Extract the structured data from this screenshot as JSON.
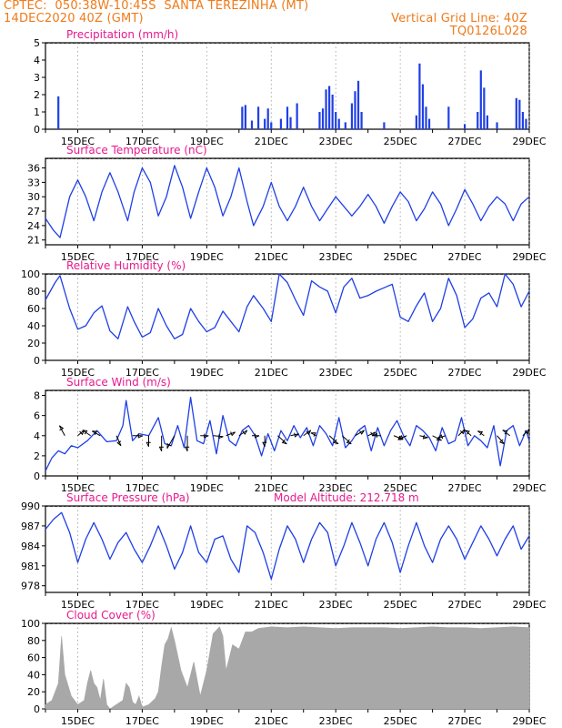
{
  "header": {
    "line1": "CPTEC:  050:38W-10:45S  SANTA TEREZINHA (MT)",
    "line2": "14DEC2020 40Z (GMT)",
    "grid_note": "Vertical Grid Line: 40Z",
    "run_code": "TQ0126L028"
  },
  "colors": {
    "header": "#ef7a1a",
    "title": "#e8188f",
    "series": "#1f3fe6",
    "cloud": "#a8a8a8",
    "grid": "#9a9a9a"
  },
  "x_axis": {
    "day_start": 14,
    "day_end": 29,
    "tick_days": [
      15,
      17,
      19,
      21,
      23,
      25,
      27,
      29
    ],
    "tick_labels": [
      "15DEC",
      "17DEC",
      "19DEC",
      "21DEC",
      "23DEC",
      "25DEC",
      "27DEC",
      "29DEC"
    ]
  },
  "chart_data": [
    {
      "type": "bar",
      "title": "Precipitation (mm/h)",
      "ylim": [
        0,
        5
      ],
      "yticks": [
        0,
        1,
        2,
        3,
        4,
        5
      ],
      "x_unit": "day of December 2020",
      "x": [
        14.4,
        20.1,
        20.2,
        20.4,
        20.6,
        20.8,
        20.9,
        21.0,
        21.3,
        21.5,
        21.6,
        21.8,
        22.5,
        22.6,
        22.7,
        22.8,
        22.9,
        23.0,
        23.1,
        23.3,
        23.5,
        23.6,
        23.7,
        23.8,
        24.5,
        25.5,
        25.6,
        25.7,
        25.8,
        25.9,
        26.5,
        27.0,
        27.4,
        27.5,
        27.6,
        27.7,
        28.0,
        28.6,
        28.7,
        28.8,
        28.9
      ],
      "values": [
        1.9,
        1.3,
        1.4,
        0.5,
        1.3,
        0.6,
        1.2,
        0.4,
        0.6,
        1.3,
        0.7,
        1.5,
        1.0,
        1.2,
        2.3,
        2.5,
        2.0,
        1.0,
        0.6,
        0.4,
        1.5,
        2.2,
        2.8,
        1.0,
        0.4,
        0.8,
        3.8,
        2.6,
        1.3,
        0.6,
        1.3,
        0.3,
        1.0,
        3.4,
        2.4,
        0.8,
        0.4,
        1.8,
        1.7,
        1.0,
        0.6
      ]
    },
    {
      "type": "line",
      "title": "Surface Temperature (nC)",
      "ylim": [
        20,
        38
      ],
      "yticks": [
        21,
        24,
        27,
        30,
        33,
        36
      ],
      "series": [
        {
          "x": [
            14.0,
            14.25,
            14.45,
            14.75,
            15.0,
            15.25,
            15.5,
            15.75,
            16.0,
            16.25,
            16.55,
            16.75,
            17.0,
            17.25,
            17.5,
            17.75,
            18.0,
            18.25,
            18.5,
            18.75,
            19.0,
            19.25,
            19.5,
            19.75,
            20.0,
            20.25,
            20.45,
            20.75,
            21.0,
            21.25,
            21.5,
            21.75,
            22.0,
            22.25,
            22.5,
            22.75,
            23.0,
            23.25,
            23.5,
            23.75,
            24.0,
            24.25,
            24.5,
            24.75,
            25.0,
            25.25,
            25.5,
            25.75,
            26.0,
            26.25,
            26.5,
            26.75,
            27.0,
            27.25,
            27.5,
            27.75,
            28.0,
            28.25,
            28.5,
            28.75,
            29.0
          ],
          "y": [
            25.5,
            23.0,
            21.5,
            30.0,
            33.5,
            30.0,
            25.0,
            31.0,
            35.0,
            31.0,
            25.0,
            31.0,
            36.0,
            33.0,
            26.0,
            30.0,
            36.5,
            32.0,
            25.5,
            31.0,
            36.0,
            32.0,
            26.0,
            30.0,
            36.0,
            29.0,
            24.0,
            28.0,
            33.0,
            28.0,
            25.0,
            28.0,
            32.0,
            28.0,
            25.0,
            27.5,
            30.0,
            28.0,
            26.0,
            28.0,
            30.5,
            28.0,
            24.5,
            28.0,
            31.0,
            29.0,
            25.0,
            27.5,
            31.0,
            28.5,
            24.0,
            27.5,
            31.5,
            28.5,
            25.0,
            28.0,
            30.0,
            28.5,
            25.0,
            28.5,
            30.0
          ]
        }
      ]
    },
    {
      "type": "line",
      "title": "Relative Humidity (%)",
      "ylim": [
        0,
        100
      ],
      "yticks": [
        0,
        20,
        40,
        60,
        80,
        100
      ],
      "series": [
        {
          "x": [
            14.0,
            14.3,
            14.45,
            14.75,
            15.0,
            15.25,
            15.5,
            15.75,
            16.0,
            16.25,
            16.55,
            16.75,
            17.0,
            17.25,
            17.5,
            17.75,
            18.0,
            18.25,
            18.5,
            18.75,
            19.0,
            19.25,
            19.5,
            19.75,
            20.0,
            20.25,
            20.45,
            20.75,
            21.0,
            21.25,
            21.5,
            21.75,
            22.0,
            22.25,
            22.5,
            22.75,
            23.0,
            23.25,
            23.5,
            23.75,
            24.0,
            24.25,
            24.5,
            24.75,
            25.0,
            25.25,
            25.5,
            25.75,
            26.0,
            26.25,
            26.5,
            26.75,
            27.0,
            27.25,
            27.5,
            27.75,
            28.0,
            28.25,
            28.5,
            28.75,
            29.0
          ],
          "y": [
            70.0,
            90.0,
            98.0,
            60.0,
            36.0,
            40.0,
            55.0,
            63.0,
            34.0,
            25.0,
            62.0,
            45.0,
            27.0,
            32.0,
            60.0,
            40.0,
            25.0,
            30.0,
            60.0,
            45.0,
            33.0,
            38.0,
            57.0,
            45.0,
            33.0,
            62.0,
            75.0,
            60.0,
            45.0,
            100.0,
            90.0,
            70.0,
            52.0,
            92.0,
            85.0,
            80.0,
            55.0,
            85.0,
            95.0,
            72.0,
            75.0,
            80.0,
            84.0,
            88.0,
            50.0,
            45.0,
            63.0,
            78.0,
            45.0,
            60.0,
            95.0,
            75.0,
            38.0,
            48.0,
            72.0,
            78.0,
            62.0,
            100.0,
            88.0,
            62.0,
            80.0
          ]
        }
      ]
    },
    {
      "type": "line",
      "title": "Surface Wind (m/s)",
      "ylim": [
        0,
        8.5
      ],
      "yticks": [
        0,
        2,
        4,
        6,
        8
      ],
      "series": [
        {
          "x": [
            14.0,
            14.2,
            14.4,
            14.6,
            14.8,
            15.0,
            15.3,
            15.6,
            15.9,
            16.2,
            16.4,
            16.5,
            16.7,
            16.9,
            17.2,
            17.5,
            17.7,
            17.9,
            18.1,
            18.3,
            18.5,
            18.7,
            18.9,
            19.1,
            19.3,
            19.5,
            19.7,
            19.9,
            20.1,
            20.3,
            20.5,
            20.7,
            20.9,
            21.1,
            21.3,
            21.5,
            21.7,
            21.9,
            22.1,
            22.3,
            22.5,
            22.7,
            22.9,
            23.1,
            23.3,
            23.5,
            23.7,
            23.9,
            24.1,
            24.3,
            24.5,
            24.7,
            24.9,
            25.1,
            25.3,
            25.5,
            25.7,
            25.9,
            26.1,
            26.3,
            26.5,
            26.7,
            26.9,
            27.1,
            27.3,
            27.5,
            27.7,
            27.9,
            28.1,
            28.3,
            28.5,
            28.7,
            28.9,
            29.0
          ],
          "y": [
            0.5,
            1.8,
            2.5,
            2.2,
            3.0,
            2.8,
            3.5,
            4.5,
            3.4,
            3.5,
            5.0,
            7.5,
            3.5,
            4.2,
            4.0,
            5.8,
            3.2,
            3.0,
            5.0,
            2.8,
            7.8,
            3.5,
            3.2,
            5.5,
            2.2,
            6.0,
            3.5,
            3.0,
            4.5,
            5.0,
            4.0,
            2.0,
            4.2,
            2.5,
            4.5,
            3.5,
            5.0,
            3.8,
            4.8,
            3.0,
            5.0,
            4.2,
            3.0,
            5.8,
            2.8,
            3.5,
            4.5,
            5.0,
            2.5,
            4.8,
            3.0,
            4.5,
            5.5,
            4.0,
            3.0,
            5.0,
            4.5,
            3.8,
            2.5,
            4.8,
            3.2,
            3.5,
            5.8,
            3.0,
            4.0,
            3.5,
            2.8,
            5.0,
            1.0,
            4.5,
            5.0,
            3.0,
            4.5,
            3.5
          ]
        }
      ],
      "wind_vectors": {
        "x": [
          14.6,
          15.0,
          15.4,
          15.7,
          16.2,
          16.7,
          17.2,
          17.6,
          18.0,
          18.4,
          18.8,
          19.2,
          19.6,
          20.0,
          20.4,
          20.8,
          21.2,
          21.6,
          22.0,
          22.4,
          22.8,
          23.2,
          23.6,
          24.0,
          24.4,
          24.8,
          25.2,
          25.6,
          26.0,
          26.4,
          26.8,
          27.2,
          27.6,
          28.0,
          28.4,
          28.8
        ],
        "u": [
          -0.3,
          0.35,
          -0.45,
          -0.45,
          0.25,
          0.55,
          0.0,
          0.0,
          -0.4,
          0.0,
          0.45,
          0.55,
          0.5,
          0.45,
          0.4,
          0.0,
          0.5,
          0.45,
          0.4,
          -0.3,
          0.5,
          0.5,
          0.5,
          0.4,
          -0.45,
          0.5,
          -0.45,
          0.45,
          0.5,
          -0.4,
          0.35,
          -0.35,
          -0.35,
          0.4,
          -0.4,
          0.35
        ],
        "v": [
          0.55,
          0.3,
          0.3,
          0.25,
          -0.55,
          0.0,
          -0.6,
          -0.85,
          -0.7,
          -0.85,
          0.0,
          -0.05,
          0.2,
          0.3,
          0.0,
          -0.6,
          -0.45,
          0.1,
          0.3,
          0.15,
          -0.45,
          -0.45,
          0.3,
          0.2,
          0.0,
          -0.2,
          -0.2,
          -0.1,
          -0.25,
          -0.15,
          0.35,
          0.3,
          0.25,
          -0.45,
          0.3,
          0.35
        ]
      }
    },
    {
      "type": "line",
      "title": "Surface Pressure (hPa)",
      "annotation": "Model Altitude: 212.718 m",
      "ylim": [
        977,
        990
      ],
      "yticks": [
        978,
        981,
        984,
        987,
        990
      ],
      "series": [
        {
          "x": [
            14.0,
            14.25,
            14.5,
            14.75,
            15.0,
            15.25,
            15.5,
            15.75,
            16.0,
            16.25,
            16.5,
            16.75,
            17.0,
            17.25,
            17.5,
            17.75,
            18.0,
            18.25,
            18.5,
            18.75,
            19.0,
            19.25,
            19.5,
            19.75,
            20.0,
            20.25,
            20.5,
            20.75,
            21.0,
            21.25,
            21.5,
            21.75,
            22.0,
            22.25,
            22.5,
            22.75,
            23.0,
            23.25,
            23.5,
            23.75,
            24.0,
            24.25,
            24.5,
            24.75,
            25.0,
            25.25,
            25.5,
            25.75,
            26.0,
            26.25,
            26.5,
            26.75,
            27.0,
            27.25,
            27.5,
            27.75,
            28.0,
            28.25,
            28.5,
            28.75,
            29.0
          ],
          "y": [
            986.5,
            988.0,
            989.0,
            986.0,
            981.5,
            985.0,
            987.5,
            985.0,
            982.0,
            984.5,
            986.0,
            983.5,
            981.5,
            984.0,
            987.0,
            984.0,
            980.5,
            983.0,
            987.0,
            983.0,
            981.5,
            985.0,
            985.5,
            982.0,
            980.0,
            987.0,
            986.0,
            983.0,
            979.0,
            983.5,
            987.0,
            985.0,
            981.5,
            985.0,
            987.5,
            986.0,
            981.0,
            984.0,
            987.5,
            984.5,
            981.0,
            985.0,
            987.5,
            984.5,
            980.0,
            984.0,
            987.5,
            984.0,
            981.5,
            985.0,
            987.0,
            985.0,
            982.0,
            984.5,
            987.0,
            985.0,
            982.5,
            985.0,
            987.0,
            983.5,
            985.5
          ]
        }
      ]
    },
    {
      "type": "area",
      "title": "Cloud Cover (%)",
      "ylim": [
        0,
        100
      ],
      "yticks": [
        0,
        20,
        40,
        60,
        80,
        100
      ],
      "series": [
        {
          "x": [
            14.0,
            14.2,
            14.4,
            14.5,
            14.6,
            14.8,
            15.0,
            15.2,
            15.3,
            15.4,
            15.5,
            15.6,
            15.7,
            15.8,
            15.9,
            16.0,
            16.2,
            16.4,
            16.5,
            16.6,
            16.7,
            16.8,
            16.9,
            17.0,
            17.2,
            17.4,
            17.5,
            17.6,
            17.7,
            17.8,
            17.9,
            18.0,
            18.2,
            18.4,
            18.6,
            18.8,
            19.0,
            19.2,
            19.4,
            19.5,
            19.6,
            19.7,
            19.8,
            20.0,
            20.2,
            20.4,
            20.6,
            21.0,
            21.5,
            22.0,
            22.5,
            23.0,
            23.5,
            24.0,
            24.5,
            25.0,
            25.5,
            26.0,
            26.5,
            27.0,
            27.5,
            28.0,
            28.5,
            29.0
          ],
          "y": [
            5,
            10,
            30,
            85,
            40,
            15,
            5,
            10,
            30,
            45,
            30,
            25,
            10,
            35,
            5,
            0,
            5,
            10,
            30,
            25,
            8,
            5,
            15,
            2,
            5,
            12,
            20,
            50,
            75,
            82,
            95,
            80,
            45,
            25,
            55,
            15,
            45,
            88,
            96,
            85,
            45,
            60,
            75,
            70,
            90,
            90,
            94,
            96,
            95,
            96,
            95,
            94,
            95,
            95,
            95,
            94,
            95,
            96,
            95,
            95,
            94,
            95,
            96,
            95
          ]
        }
      ]
    }
  ]
}
